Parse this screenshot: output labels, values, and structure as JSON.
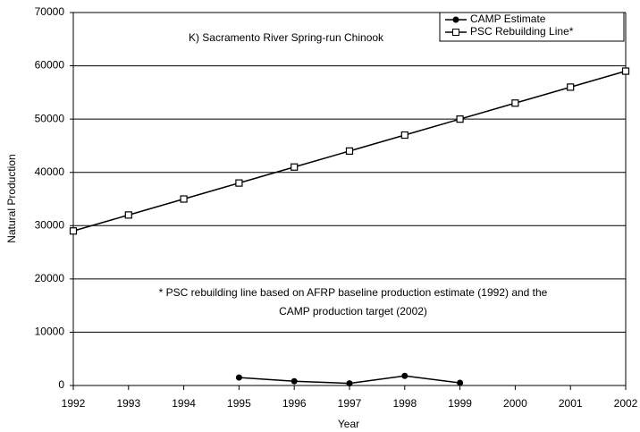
{
  "chart_data": {
    "type": "line",
    "title": "K) Sacramento River Spring-run Chinook",
    "xlabel": "Year",
    "ylabel": "Natural Production",
    "annotation": [
      "* PSC rebuilding line based on AFRP baseline production estimate (1992) and the",
      "CAMP production target (2002)"
    ],
    "x": [
      1992,
      1993,
      1994,
      1995,
      1996,
      1997,
      1998,
      1999,
      2000,
      2001,
      2002
    ],
    "series": [
      {
        "name": "CAMP Estimate",
        "color": "#000000",
        "marker": "circle",
        "values": [
          null,
          null,
          null,
          1500,
          800,
          400,
          1800,
          500,
          null,
          null,
          null
        ]
      },
      {
        "name": "PSC Rebuilding Line*",
        "color": "#000000",
        "marker": "square",
        "values": [
          29000,
          32000,
          35000,
          38000,
          41000,
          44000,
          47000,
          50000,
          53000,
          56000,
          59000
        ]
      }
    ],
    "xlim": [
      1992,
      2002
    ],
    "xticks": [
      1992,
      1993,
      1994,
      1995,
      1996,
      1997,
      1998,
      1999,
      2000,
      2001,
      2002
    ],
    "ylim": [
      0,
      70000
    ],
    "yticks": [
      0,
      10000,
      20000,
      30000,
      40000,
      50000,
      60000,
      70000
    ],
    "grid": true,
    "legend": "upper right"
  }
}
